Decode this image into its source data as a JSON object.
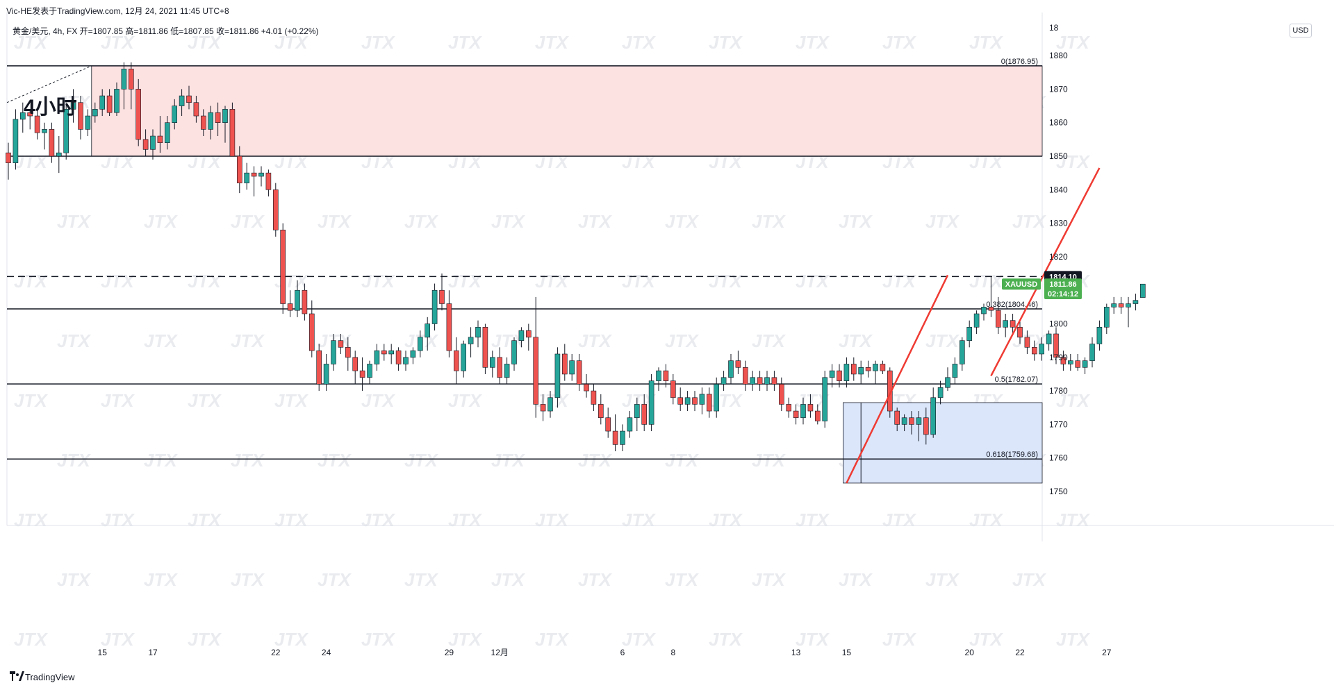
{
  "header": {
    "title": "Vic-HE发表于TradingView.com, 12月 24, 2021 11:45 UTC+8",
    "symbol_line": "黄金/美元, 4h, FX 开=1807.85 高=1811.86 低=1807.85 收=1811.86 +4.01 (+0.22%)",
    "currency": "USD"
  },
  "footer": {
    "brand": "TradingView"
  },
  "watermark": "JTX",
  "colors": {
    "up": "#26a69a",
    "down": "#ef5350",
    "zone_supply": "#fde2e2",
    "zone_demand": "#dbe6fb",
    "line": "#131722",
    "trend": "#ef3b33",
    "price_label": "#4caf50"
  },
  "chart_data": {
    "type": "candlestick",
    "symbol": "XAUUSD",
    "interval": "4h",
    "annotation_text": "4小时",
    "y_ticks": [
      1750,
      1760,
      1770,
      1780,
      1790,
      1800,
      1810,
      1820,
      1830,
      1840,
      1850,
      1860,
      1870,
      1880
    ],
    "y_top_partial": "18",
    "x_ticks": [
      {
        "label": "15",
        "i": 13
      },
      {
        "label": "17",
        "i": 20
      },
      {
        "label": "22",
        "i": 37
      },
      {
        "label": "24",
        "i": 44
      },
      {
        "label": "29",
        "i": 61
      },
      {
        "label": "12月",
        "i": 68
      },
      {
        "label": "6",
        "i": 85
      },
      {
        "label": "8",
        "i": 92
      },
      {
        "label": "13",
        "i": 109
      },
      {
        "label": "15",
        "i": 116
      },
      {
        "label": "20",
        "i": 133
      },
      {
        "label": "22",
        "i": 140
      },
      {
        "label": "27",
        "i": 152
      }
    ],
    "levels": [
      {
        "price": 1876.95,
        "label": "0(1876.95)",
        "style": "solid"
      },
      {
        "price": 1850.0,
        "label": "",
        "style": "solid"
      },
      {
        "price": 1814.1,
        "label": "",
        "style": "dashed"
      },
      {
        "price": 1804.46,
        "label": "0.382(1804.46)",
        "style": "solid"
      },
      {
        "price": 1782.07,
        "label": "0.5(1782.07)",
        "style": "solid"
      },
      {
        "price": 1759.68,
        "label": "0.618(1759.68)",
        "style": "solid"
      }
    ],
    "zones": [
      {
        "type": "supply",
        "from_i": 12,
        "price_top": 1876.95,
        "price_bottom": 1850.0
      },
      {
        "type": "demand",
        "from_i": 116,
        "price_top": 1776.5,
        "price_bottom": 1752.5
      }
    ],
    "trendlines": [
      {
        "i1": 116,
        "p1": 1752.5,
        "i2": 130,
        "p2": 1814.5
      },
      {
        "i1": 136,
        "p1": 1784.5,
        "i2": 151,
        "p2": 1846.5
      }
    ],
    "price_labels": [
      {
        "text": "1814.10",
        "price": 1814.1,
        "style": "dark"
      },
      {
        "text": "1811.86",
        "price": 1811.86,
        "style": "green"
      },
      {
        "text": "02:14:12",
        "price": 1809.0,
        "style": "green"
      },
      {
        "text": "XAUUSD",
        "price": 1811.86,
        "style": "green-left"
      }
    ],
    "candles": [
      [
        1851,
        1854,
        1843,
        1848
      ],
      [
        1848,
        1864,
        1846,
        1861
      ],
      [
        1861,
        1866,
        1857,
        1863
      ],
      [
        1863,
        1864,
        1858,
        1862
      ],
      [
        1862,
        1864,
        1855,
        1857
      ],
      [
        1857,
        1860,
        1852,
        1858
      ],
      [
        1858,
        1860,
        1848,
        1850
      ],
      [
        1850,
        1856,
        1845,
        1851
      ],
      [
        1851,
        1866,
        1849,
        1864
      ],
      [
        1864,
        1870,
        1860,
        1866
      ],
      [
        1866,
        1868,
        1855,
        1858
      ],
      [
        1858,
        1864,
        1856,
        1862
      ],
      [
        1862,
        1866,
        1860,
        1864
      ],
      [
        1864,
        1870,
        1862,
        1868
      ],
      [
        1868,
        1870,
        1862,
        1863
      ],
      [
        1863,
        1872,
        1862,
        1870
      ],
      [
        1870,
        1878,
        1864,
        1876
      ],
      [
        1876,
        1878,
        1864,
        1870
      ],
      [
        1870,
        1873,
        1853,
        1855
      ],
      [
        1855,
        1858,
        1850,
        1852
      ],
      [
        1852,
        1858,
        1849,
        1856
      ],
      [
        1856,
        1862,
        1851,
        1854
      ],
      [
        1854,
        1862,
        1852,
        1860
      ],
      [
        1860,
        1867,
        1858,
        1865
      ],
      [
        1865,
        1870,
        1862,
        1868
      ],
      [
        1868,
        1871,
        1864,
        1866
      ],
      [
        1866,
        1868,
        1860,
        1862
      ],
      [
        1862,
        1864,
        1856,
        1858
      ],
      [
        1858,
        1865,
        1855,
        1863
      ],
      [
        1863,
        1866,
        1856,
        1860
      ],
      [
        1860,
        1865,
        1854,
        1864
      ],
      [
        1864,
        1866,
        1850,
        1850
      ],
      [
        1850,
        1853,
        1839,
        1842
      ],
      [
        1842,
        1848,
        1840,
        1845
      ],
      [
        1845,
        1847,
        1838,
        1844
      ],
      [
        1844,
        1847,
        1841,
        1845
      ],
      [
        1845,
        1846,
        1838,
        1840
      ],
      [
        1840,
        1842,
        1826,
        1828
      ],
      [
        1828,
        1830,
        1803,
        1806
      ],
      [
        1806,
        1810,
        1802,
        1804
      ],
      [
        1804,
        1813,
        1802,
        1810
      ],
      [
        1810,
        1812,
        1801,
        1803
      ],
      [
        1803,
        1807,
        1790,
        1792
      ],
      [
        1792,
        1794,
        1780,
        1782
      ],
      [
        1782,
        1791,
        1780,
        1788
      ],
      [
        1788,
        1797,
        1786,
        1795
      ],
      [
        1795,
        1797,
        1791,
        1793
      ],
      [
        1793,
        1796,
        1786,
        1790
      ],
      [
        1790,
        1792,
        1782,
        1786
      ],
      [
        1786,
        1790,
        1780,
        1784
      ],
      [
        1784,
        1789,
        1782,
        1788
      ],
      [
        1788,
        1794,
        1786,
        1792
      ],
      [
        1792,
        1794,
        1789,
        1791
      ],
      [
        1791,
        1794,
        1788,
        1792
      ],
      [
        1792,
        1793,
        1786,
        1788
      ],
      [
        1788,
        1792,
        1786,
        1790
      ],
      [
        1790,
        1793,
        1788,
        1792
      ],
      [
        1792,
        1798,
        1790,
        1796
      ],
      [
        1796,
        1802,
        1792,
        1800
      ],
      [
        1800,
        1812,
        1798,
        1810
      ],
      [
        1810,
        1815,
        1804,
        1806
      ],
      [
        1806,
        1810,
        1790,
        1792
      ],
      [
        1792,
        1796,
        1782,
        1786
      ],
      [
        1786,
        1795,
        1784,
        1794
      ],
      [
        1794,
        1799,
        1790,
        1796
      ],
      [
        1796,
        1801,
        1793,
        1799
      ],
      [
        1799,
        1800,
        1785,
        1787
      ],
      [
        1787,
        1792,
        1784,
        1790
      ],
      [
        1790,
        1793,
        1782,
        1784
      ],
      [
        1784,
        1790,
        1782,
        1788
      ],
      [
        1788,
        1796,
        1786,
        1795
      ],
      [
        1795,
        1799,
        1793,
        1798
      ],
      [
        1798,
        1800,
        1792,
        1796
      ],
      [
        1796,
        1808,
        1772,
        1776
      ],
      [
        1776,
        1779,
        1771,
        1774
      ],
      [
        1774,
        1780,
        1772,
        1778
      ],
      [
        1778,
        1793,
        1775,
        1791
      ],
      [
        1791,
        1794,
        1783,
        1785
      ],
      [
        1785,
        1791,
        1783,
        1789
      ],
      [
        1789,
        1791,
        1780,
        1782
      ],
      [
        1782,
        1785,
        1778,
        1780
      ],
      [
        1780,
        1782,
        1774,
        1776
      ],
      [
        1776,
        1779,
        1770,
        1772
      ],
      [
        1772,
        1775,
        1766,
        1768
      ],
      [
        1768,
        1773,
        1762,
        1764
      ],
      [
        1764,
        1770,
        1762,
        1768
      ],
      [
        1768,
        1774,
        1766,
        1772
      ],
      [
        1772,
        1778,
        1768,
        1776
      ],
      [
        1776,
        1779,
        1768,
        1770
      ],
      [
        1770,
        1785,
        1768,
        1783
      ],
      [
        1783,
        1787,
        1780,
        1786
      ],
      [
        1786,
        1788,
        1781,
        1783
      ],
      [
        1783,
        1785,
        1776,
        1778
      ],
      [
        1778,
        1781,
        1774,
        1776
      ],
      [
        1776,
        1780,
        1774,
        1778
      ],
      [
        1778,
        1780,
        1774,
        1776
      ],
      [
        1776,
        1781,
        1773,
        1779
      ],
      [
        1779,
        1781,
        1772,
        1774
      ],
      [
        1774,
        1784,
        1772,
        1782
      ],
      [
        1782,
        1786,
        1780,
        1784
      ],
      [
        1784,
        1791,
        1782,
        1789
      ],
      [
        1789,
        1792,
        1785,
        1787
      ],
      [
        1787,
        1789,
        1780,
        1782
      ],
      [
        1782,
        1786,
        1780,
        1784
      ],
      [
        1784,
        1786,
        1780,
        1782
      ],
      [
        1782,
        1786,
        1780,
        1784
      ],
      [
        1784,
        1786,
        1780,
        1782
      ],
      [
        1782,
        1784,
        1774,
        1776
      ],
      [
        1776,
        1778,
        1772,
        1774
      ],
      [
        1774,
        1776,
        1770,
        1772
      ],
      [
        1772,
        1778,
        1770,
        1776
      ],
      [
        1776,
        1779,
        1772,
        1774
      ],
      [
        1774,
        1776,
        1770,
        1771
      ],
      [
        1771,
        1786,
        1769,
        1784
      ],
      [
        1784,
        1788,
        1781,
        1786
      ],
      [
        1786,
        1788,
        1781,
        1783
      ],
      [
        1783,
        1790,
        1781,
        1788
      ],
      [
        1788,
        1790,
        1783,
        1785
      ],
      [
        1785,
        1789,
        1782,
        1787
      ],
      [
        1787,
        1789,
        1784,
        1786
      ],
      [
        1786,
        1789,
        1782,
        1788
      ],
      [
        1788,
        1789,
        1785,
        1786
      ],
      [
        1786,
        1787,
        1772,
        1774
      ],
      [
        1774,
        1775,
        1768,
        1770
      ],
      [
        1770,
        1773,
        1768,
        1772
      ],
      [
        1772,
        1774,
        1767,
        1770
      ],
      [
        1770,
        1774,
        1765,
        1772
      ],
      [
        1772,
        1775,
        1764,
        1767
      ],
      [
        1767,
        1781,
        1766,
        1778
      ],
      [
        1778,
        1783,
        1776,
        1781
      ],
      [
        1781,
        1787,
        1780,
        1784
      ],
      [
        1784,
        1790,
        1782,
        1788
      ],
      [
        1788,
        1796,
        1786,
        1795
      ],
      [
        1795,
        1801,
        1793,
        1799
      ],
      [
        1799,
        1804,
        1797,
        1803
      ],
      [
        1803,
        1806,
        1801,
        1805
      ],
      [
        1805,
        1814,
        1802,
        1804
      ],
      [
        1804,
        1808,
        1797,
        1799
      ],
      [
        1799,
        1803,
        1796,
        1801
      ],
      [
        1801,
        1803,
        1797,
        1799
      ],
      [
        1799,
        1801,
        1794,
        1796
      ],
      [
        1796,
        1798,
        1791,
        1793
      ],
      [
        1793,
        1795,
        1789,
        1791
      ],
      [
        1791,
        1796,
        1789,
        1794
      ],
      [
        1794,
        1798,
        1792,
        1797
      ],
      [
        1797,
        1799,
        1788,
        1790
      ],
      [
        1790,
        1792,
        1786,
        1788
      ],
      [
        1788,
        1791,
        1786,
        1789
      ],
      [
        1789,
        1791,
        1786,
        1787
      ],
      [
        1787,
        1790,
        1785,
        1789
      ],
      [
        1789,
        1796,
        1787,
        1794
      ],
      [
        1794,
        1801,
        1792,
        1799
      ],
      [
        1799,
        1806,
        1797,
        1805
      ],
      [
        1805,
        1808,
        1803,
        1806
      ],
      [
        1806,
        1808,
        1803,
        1805
      ],
      [
        1805,
        1808,
        1799,
        1806
      ],
      [
        1806,
        1809,
        1804,
        1807
      ],
      [
        1807.85,
        1811.86,
        1807.85,
        1811.86
      ]
    ]
  }
}
